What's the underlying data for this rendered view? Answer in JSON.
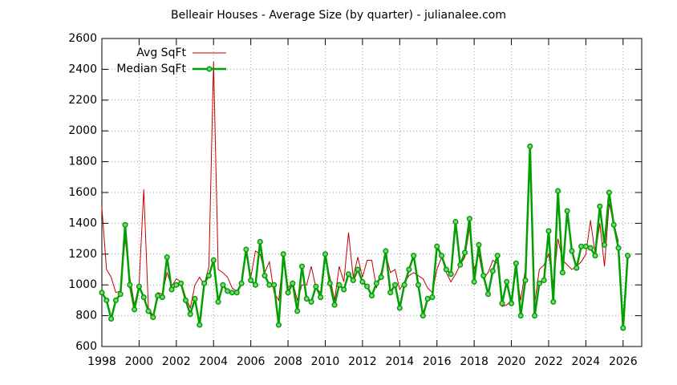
{
  "chart_data": {
    "type": "line",
    "title": "Belleair Houses - Average Size (by quarter) - julianalee.com",
    "x": [
      1998,
      1998.25,
      1998.5,
      1998.75,
      1999,
      1999.25,
      1999.5,
      1999.75,
      2000,
      2000.25,
      2000.5,
      2000.75,
      2001,
      2001.25,
      2001.5,
      2001.75,
      2002,
      2002.25,
      2002.5,
      2002.75,
      2003,
      2003.25,
      2003.5,
      2003.75,
      2004,
      2004.25,
      2004.5,
      2004.75,
      2005,
      2005.25,
      2005.5,
      2005.75,
      2006,
      2006.25,
      2006.5,
      2006.75,
      2007,
      2007.25,
      2007.5,
      2007.75,
      2008,
      2008.25,
      2008.5,
      2008.75,
      2009,
      2009.25,
      2009.5,
      2009.75,
      2010,
      2010.25,
      2010.5,
      2010.75,
      2011,
      2011.25,
      2011.5,
      2011.75,
      2012,
      2012.25,
      2012.5,
      2012.75,
      2013,
      2013.25,
      2013.5,
      2013.75,
      2014,
      2014.25,
      2014.5,
      2014.75,
      2015,
      2015.25,
      2015.5,
      2015.75,
      2016,
      2016.25,
      2016.5,
      2016.75,
      2017,
      2017.25,
      2017.5,
      2017.75,
      2018,
      2018.25,
      2018.5,
      2018.75,
      2019,
      2019.25,
      2019.5,
      2019.75,
      2020,
      2020.25,
      2020.5,
      2020.75,
      2021,
      2021.25,
      2021.5,
      2021.75,
      2022,
      2022.25,
      2022.5,
      2022.75,
      2023,
      2023.25,
      2023.5,
      2023.75,
      2024,
      2024.25,
      2024.5,
      2024.75,
      2025,
      2025.25,
      2025.5,
      2025.75,
      2026,
      2026.25
    ],
    "series": [
      {
        "name": "Avg SqFt",
        "color": "#c00000",
        "markers": false,
        "values": [
          1500,
          1100,
          1050,
          950,
          960,
          1300,
          1050,
          870,
          1000,
          1620,
          850,
          800,
          950,
          940,
          1080,
          990,
          1040,
          1020,
          920,
          850,
          1000,
          1050,
          1000,
          1120,
          2450,
          1100,
          1080,
          1050,
          980,
          960,
          1010,
          1200,
          1050,
          1220,
          1200,
          1080,
          1150,
          950,
          900,
          1180,
          980,
          1020,
          900,
          1000,
          1000,
          1120,
          980,
          950,
          1180,
          1050,
          900,
          1120,
          1020,
          1340,
          1050,
          1180,
          1050,
          1160,
          1160,
          980,
          1080,
          1200,
          1080,
          1100,
          970,
          1020,
          1060,
          1080,
          1060,
          1040,
          980,
          950,
          1100,
          1180,
          1080,
          1020,
          1070,
          1130,
          1180,
          1370,
          1100,
          1200,
          1040,
          1080,
          1160,
          1140,
          860,
          870,
          900,
          1090,
          900,
          1100,
          1810,
          880,
          1100,
          1130,
          1200,
          1000,
          1300,
          1160,
          1130,
          1100,
          1120,
          1150,
          1200,
          1420,
          1200,
          1400,
          1120,
          1530,
          1400,
          1280,
          null,
          null
        ]
      },
      {
        "name": "Median SqFt",
        "color": "#00a000",
        "markers": true,
        "values": [
          950,
          900,
          780,
          900,
          940,
          1390,
          1000,
          840,
          990,
          920,
          830,
          790,
          930,
          920,
          1180,
          970,
          1000,
          1010,
          900,
          810,
          910,
          740,
          1010,
          1060,
          1160,
          890,
          1000,
          960,
          950,
          950,
          1010,
          1230,
          1030,
          1000,
          1280,
          1060,
          1000,
          1000,
          740,
          1200,
          950,
          1010,
          830,
          1120,
          910,
          890,
          990,
          920,
          1200,
          1010,
          870,
          1000,
          970,
          1070,
          1030,
          1100,
          1020,
          990,
          930,
          1010,
          1050,
          1220,
          950,
          1000,
          850,
          1000,
          1100,
          1190,
          1000,
          800,
          910,
          920,
          1250,
          1190,
          1100,
          1070,
          1410,
          1130,
          1210,
          1430,
          1020,
          1260,
          1060,
          940,
          1090,
          1190,
          880,
          1020,
          880,
          1140,
          800,
          1030,
          1900,
          800,
          1010,
          1030,
          1350,
          890,
          1610,
          1080,
          1480,
          1220,
          1110,
          1250,
          1250,
          1240,
          1190,
          1510,
          1260,
          1600,
          1390,
          1240,
          720,
          1190
        ]
      }
    ],
    "xlim": [
      1998,
      2027
    ],
    "xticks": [
      1998,
      2000,
      2002,
      2004,
      2006,
      2008,
      2010,
      2012,
      2014,
      2016,
      2018,
      2020,
      2022,
      2024,
      2026
    ],
    "ylim": [
      600,
      2600
    ],
    "yticks": [
      600,
      800,
      1000,
      1200,
      1400,
      1600,
      1800,
      2000,
      2200,
      2400,
      2600
    ],
    "grid": true,
    "legend": "top-left"
  }
}
